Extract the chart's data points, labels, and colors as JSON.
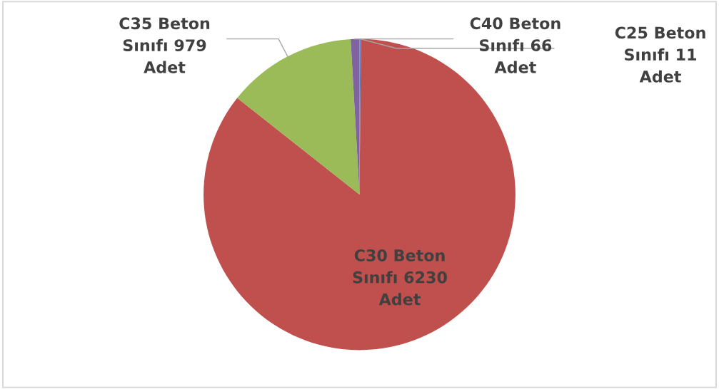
{
  "chart_data": {
    "type": "pie",
    "categories": [
      "C25 Beton Sınıfı",
      "C30 Beton Sınıfı",
      "C35 Beton Sınıfı",
      "C40 Beton Sınıfı"
    ],
    "value_labels": [
      "11 Adet",
      "6230 Adet",
      "979 Adet",
      "66 Adet"
    ],
    "values": [
      11,
      6230,
      979,
      66
    ],
    "colors": [
      "#4f81bd",
      "#c0504d",
      "#9bbb59",
      "#8064a2"
    ],
    "legend": false
  }
}
